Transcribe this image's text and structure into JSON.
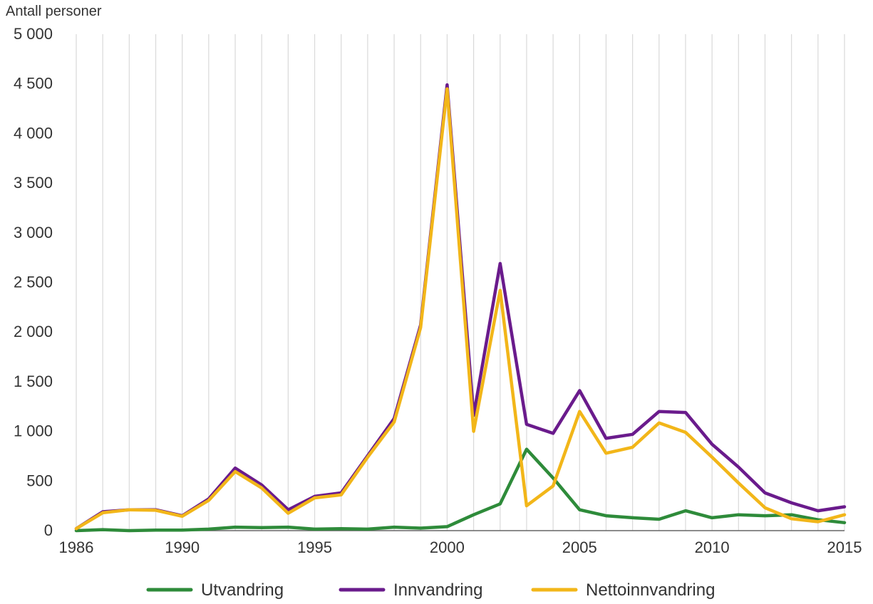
{
  "chart_data": {
    "type": "line",
    "ylabel": "Antall personer",
    "xlabel": "",
    "title": "",
    "xlim": [
      1986,
      2015
    ],
    "ylim": [
      0,
      5000
    ],
    "y_ticks": [
      0,
      500,
      1000,
      1500,
      2000,
      2500,
      3000,
      3500,
      4000,
      4500,
      5000
    ],
    "y_tick_labels": [
      "0",
      "500",
      "1 000",
      "1 500",
      "2 000",
      "2 500",
      "3 000",
      "3 500",
      "4 000",
      "4 500",
      "5 000"
    ],
    "x_ticks": [
      1986,
      1990,
      1995,
      2000,
      2005,
      2010,
      2015
    ],
    "x_tick_labels": [
      "1986",
      "1990",
      "1995",
      "2000",
      "2005",
      "2010",
      "2015"
    ],
    "grid": "vertical lines at every year",
    "legend_position": "bottom",
    "x": [
      1986,
      1987,
      1988,
      1989,
      1990,
      1991,
      1992,
      1993,
      1994,
      1995,
      1996,
      1997,
      1998,
      1999,
      2000,
      2001,
      2002,
      2003,
      2004,
      2005,
      2006,
      2007,
      2008,
      2009,
      2010,
      2011,
      2012,
      2013,
      2014,
      2015
    ],
    "series": [
      {
        "name": "Utvandring",
        "color": "#2e8b3a",
        "values": [
          0,
          10,
          0,
          5,
          5,
          15,
          35,
          30,
          35,
          15,
          20,
          15,
          35,
          25,
          40,
          160,
          270,
          820,
          530,
          210,
          150,
          130,
          115,
          200,
          130,
          160,
          150,
          160,
          110,
          80
        ]
      },
      {
        "name": "Innvandring",
        "color": "#6a1b8c",
        "values": [
          20,
          190,
          210,
          210,
          150,
          320,
          630,
          460,
          210,
          345,
          380,
          755,
          1130,
          2070,
          4490,
          1160,
          2690,
          1070,
          980,
          1410,
          930,
          970,
          1200,
          1190,
          870,
          640,
          380,
          280,
          200,
          240
        ]
      },
      {
        "name": "Nettoinnvandring",
        "color": "#f2b619",
        "values": [
          20,
          180,
          210,
          205,
          145,
          305,
          595,
          430,
          175,
          330,
          360,
          740,
          1095,
          2045,
          4450,
          1000,
          2420,
          250,
          450,
          1200,
          780,
          840,
          1085,
          990,
          740,
          480,
          230,
          120,
          90,
          160
        ]
      }
    ]
  }
}
